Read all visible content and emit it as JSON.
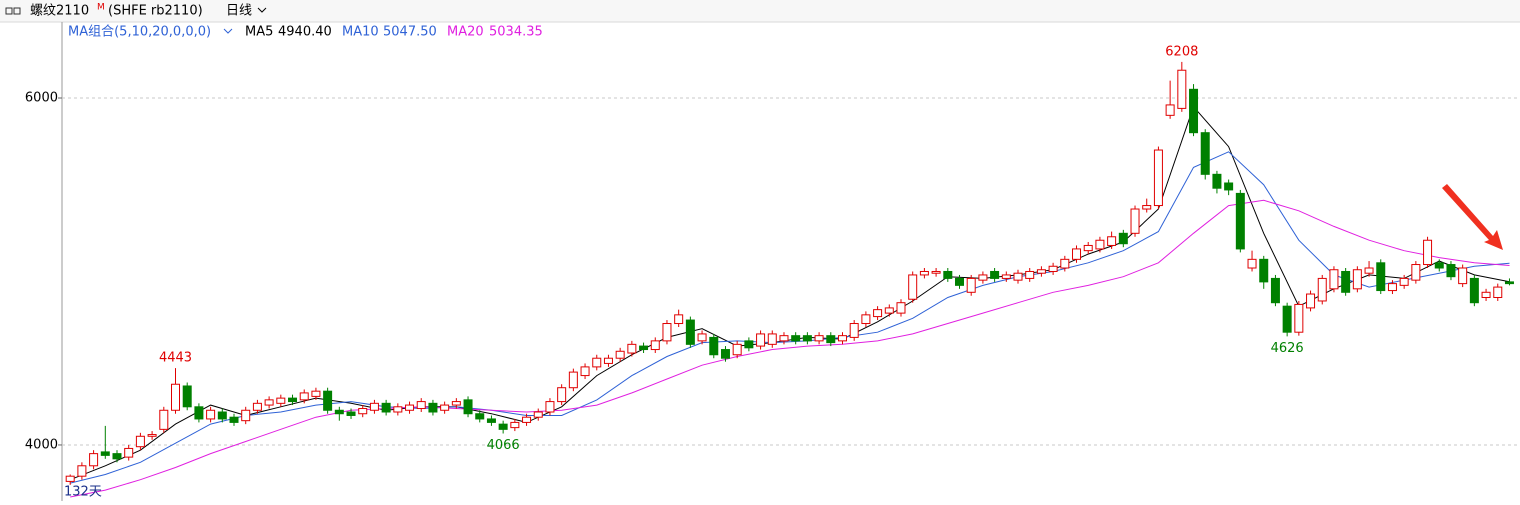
{
  "header": {
    "name": "螺纹2110",
    "flag": "M",
    "code": "(SHFE rb2110)",
    "period": "日线"
  },
  "chart_data": {
    "type": "candlestick",
    "indicator": "MA组合(5,10,20,0,0,0)",
    "period_label": "132天",
    "up_color": "#e00000",
    "down_color": "#008000",
    "xlim": [
      -0.7,
      123.9
    ],
    "ylim": [
      3677,
      6438
    ],
    "yticks": [
      4000,
      6000
    ],
    "grid": true,
    "open": [
      3790,
      3820,
      3880,
      3960,
      3950,
      3930,
      3990,
      4050,
      4090,
      4200,
      4340,
      4220,
      4150,
      4190,
      4160,
      4140,
      4200,
      4230,
      4240,
      4270,
      4260,
      4280,
      4310,
      4200,
      4190,
      4180,
      4200,
      4240,
      4190,
      4200,
      4210,
      4240,
      4200,
      4230,
      4260,
      4180,
      4150,
      4120,
      4100,
      4130,
      4160,
      4190,
      4250,
      4330,
      4400,
      4450,
      4470,
      4500,
      4530,
      4570,
      4550,
      4600,
      4700,
      4720,
      4600,
      4620,
      4550,
      4520,
      4600,
      4570,
      4580,
      4600,
      4630,
      4630,
      4600,
      4630,
      4600,
      4620,
      4700,
      4740,
      4760,
      4760,
      4840,
      4980,
      4990,
      5000,
      4960,
      4880,
      4950,
      5000,
      4960,
      4950,
      4960,
      4990,
      5000,
      5020,
      5070,
      5120,
      5130,
      5150,
      5220,
      5220,
      5360,
      5380,
      5900,
      5940,
      6050,
      5800,
      5560,
      5510,
      5450,
      5020,
      5070,
      4960,
      4800,
      4650,
      4790,
      4830,
      4900,
      5000,
      4900,
      4990,
      5050,
      4890,
      4920,
      4950,
      5040,
      5050,
      5040,
      4930,
      4960,
      4850,
      4850,
      4940
    ],
    "high": [
      3830,
      3900,
      3970,
      4110,
      3970,
      4000,
      4070,
      4080,
      4220,
      4443,
      4360,
      4240,
      4220,
      4210,
      4180,
      4220,
      4260,
      4280,
      4290,
      4290,
      4320,
      4330,
      4330,
      4220,
      4210,
      4230,
      4260,
      4260,
      4240,
      4250,
      4270,
      4260,
      4250,
      4270,
      4280,
      4200,
      4170,
      4140,
      4150,
      4180,
      4210,
      4270,
      4350,
      4440,
      4470,
      4520,
      4520,
      4560,
      4600,
      4590,
      4620,
      4720,
      4780,
      4740,
      4660,
      4640,
      4570,
      4600,
      4620,
      4660,
      4660,
      4650,
      4650,
      4650,
      4650,
      4650,
      4650,
      4720,
      4770,
      4800,
      4810,
      4840,
      5000,
      5020,
      5020,
      5020,
      4980,
      4980,
      5000,
      5020,
      5000,
      5010,
      5020,
      5030,
      5050,
      5090,
      5150,
      5170,
      5200,
      5230,
      5240,
      5380,
      5420,
      5720,
      6100,
      6208,
      6080,
      5820,
      5580,
      5530,
      5470,
      5120,
      5090,
      4980,
      4820,
      4830,
      4890,
      4980,
      5030,
      5020,
      5030,
      5060,
      5070,
      4950,
      4980,
      5060,
      5200,
      5070,
      5060,
      5040,
      4980,
      4900,
      4930,
      4960
    ],
    "low": [
      3770,
      3800,
      3860,
      3920,
      3900,
      3910,
      3970,
      4030,
      4070,
      4180,
      4200,
      4130,
      4130,
      4130,
      4110,
      4120,
      4180,
      4210,
      4220,
      4230,
      4240,
      4260,
      4180,
      4140,
      4150,
      4160,
      4180,
      4170,
      4170,
      4180,
      4190,
      4170,
      4180,
      4210,
      4160,
      4130,
      4110,
      4066,
      4080,
      4110,
      4140,
      4170,
      4230,
      4310,
      4380,
      4430,
      4450,
      4480,
      4510,
      4530,
      4530,
      4580,
      4680,
      4560,
      4580,
      4500,
      4480,
      4500,
      4540,
      4550,
      4560,
      4580,
      4580,
      4580,
      4580,
      4570,
      4580,
      4600,
      4680,
      4720,
      4740,
      4740,
      4820,
      4960,
      4970,
      4940,
      4900,
      4860,
      4930,
      4940,
      4940,
      4930,
      4940,
      4970,
      4980,
      5000,
      5050,
      5100,
      5110,
      5130,
      5140,
      5200,
      5340,
      5360,
      5880,
      5920,
      5780,
      5530,
      5450,
      5440,
      5110,
      5000,
      4900,
      4800,
      4626,
      4630,
      4770,
      4810,
      4880,
      4860,
      4880,
      4970,
      4870,
      4870,
      4900,
      4930,
      5020,
      5000,
      4950,
      4910,
      4800,
      4830,
      4830,
      4920
    ],
    "close": [
      3820,
      3880,
      3950,
      3940,
      3920,
      3980,
      4050,
      4060,
      4200,
      4350,
      4220,
      4150,
      4200,
      4150,
      4130,
      4200,
      4240,
      4260,
      4270,
      4250,
      4300,
      4310,
      4200,
      4180,
      4170,
      4210,
      4240,
      4190,
      4220,
      4230,
      4250,
      4190,
      4230,
      4250,
      4180,
      4150,
      4130,
      4090,
      4130,
      4160,
      4190,
      4250,
      4330,
      4420,
      4450,
      4500,
      4500,
      4540,
      4580,
      4550,
      4600,
      4700,
      4750,
      4580,
      4640,
      4520,
      4500,
      4580,
      4560,
      4640,
      4640,
      4630,
      4600,
      4600,
      4630,
      4590,
      4630,
      4700,
      4750,
      4780,
      4790,
      4820,
      4980,
      5000,
      5000,
      4960,
      4920,
      4960,
      4980,
      4960,
      4980,
      4990,
      5000,
      5010,
      5030,
      5070,
      5130,
      5150,
      5180,
      5200,
      5160,
      5360,
      5380,
      5700,
      5960,
      6160,
      5800,
      5560,
      5480,
      5470,
      5130,
      5070,
      4940,
      4820,
      4650,
      4810,
      4870,
      4960,
      5010,
      4880,
      5010,
      5020,
      4890,
      4930,
      4960,
      5040,
      5180,
      5020,
      4970,
      5020,
      4820,
      4880,
      4910,
      4930
    ],
    "annotations": {
      "high": [
        "high.95",
        "high.9"
      ],
      "low": [
        "low.104",
        "low.37"
      ]
    },
    "series": [
      {
        "name": "MA5",
        "legend_value": "4940.40",
        "color": "#000000",
        "x": [
          0,
          3,
          6,
          9,
          12,
          15,
          18,
          21,
          24,
          27,
          30,
          33,
          36,
          39,
          42,
          45,
          48,
          51,
          54,
          57,
          60,
          63,
          66,
          69,
          72,
          75,
          78,
          81,
          84,
          87,
          90,
          93,
          96,
          99,
          102,
          105,
          108,
          111,
          114,
          117,
          120,
          123
        ],
        "values": [
          3800,
          3880,
          3970,
          4120,
          4230,
          4170,
          4220,
          4270,
          4240,
          4200,
          4220,
          4220,
          4180,
          4130,
          4220,
          4400,
          4520,
          4620,
          4670,
          4570,
          4590,
          4620,
          4610,
          4710,
          4830,
          4970,
          4960,
          4980,
          5010,
          5100,
          5170,
          5360,
          5950,
          5720,
          5220,
          4800,
          4900,
          4980,
          4960,
          5060,
          4980,
          4940.4
        ]
      },
      {
        "name": "MA10",
        "legend_value": "5047.50",
        "color": "#2f62d6",
        "x": [
          0,
          3,
          6,
          9,
          12,
          15,
          18,
          21,
          24,
          27,
          30,
          33,
          36,
          39,
          42,
          45,
          48,
          51,
          54,
          57,
          60,
          63,
          66,
          69,
          72,
          75,
          78,
          81,
          84,
          87,
          90,
          93,
          96,
          99,
          102,
          105,
          108,
          111,
          114,
          117,
          120,
          123
        ],
        "values": [
          3780,
          3830,
          3900,
          4010,
          4120,
          4170,
          4190,
          4230,
          4250,
          4220,
          4210,
          4220,
          4200,
          4170,
          4170,
          4260,
          4400,
          4510,
          4590,
          4600,
          4590,
          4600,
          4620,
          4650,
          4730,
          4850,
          4920,
          4970,
          5000,
          5050,
          5120,
          5230,
          5600,
          5690,
          5500,
          5180,
          4980,
          4910,
          4950,
          4990,
          5030,
          5047.5
        ]
      },
      {
        "name": "MA20",
        "legend_value": "5034.35",
        "color": "#e020e0",
        "x": [
          0,
          3,
          6,
          9,
          12,
          15,
          18,
          21,
          24,
          27,
          30,
          33,
          36,
          39,
          42,
          45,
          48,
          51,
          54,
          57,
          60,
          63,
          66,
          69,
          72,
          75,
          78,
          81,
          84,
          87,
          90,
          93,
          96,
          99,
          102,
          105,
          108,
          111,
          114,
          117,
          120,
          123
        ],
        "values": [
          3700,
          3740,
          3800,
          3870,
          3950,
          4020,
          4090,
          4160,
          4200,
          4210,
          4220,
          4210,
          4200,
          4190,
          4200,
          4230,
          4300,
          4380,
          4460,
          4510,
          4550,
          4570,
          4580,
          4600,
          4640,
          4700,
          4760,
          4820,
          4880,
          4920,
          4970,
          5050,
          5220,
          5380,
          5410,
          5350,
          5260,
          5180,
          5120,
          5080,
          5050,
          5034.35
        ]
      }
    ]
  }
}
